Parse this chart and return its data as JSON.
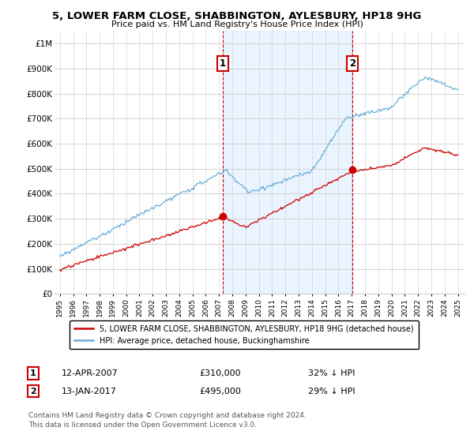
{
  "title": "5, LOWER FARM CLOSE, SHABBINGTON, AYLESBURY, HP18 9HG",
  "subtitle": "Price paid vs. HM Land Registry's House Price Index (HPI)",
  "legend_line1": "5, LOWER FARM CLOSE, SHABBINGTON, AYLESBURY, HP18 9HG (detached house)",
  "legend_line2": "HPI: Average price, detached house, Buckinghamshire",
  "ann1": {
    "label": "1",
    "date": "12-APR-2007",
    "price": "£310,000",
    "pct": "32% ↓ HPI",
    "x_year": 2007.28,
    "y_val": 310000
  },
  "ann2": {
    "label": "2",
    "date": "13-JAN-2017",
    "price": "£495,000",
    "pct": "29% ↓ HPI",
    "x_year": 2017.04,
    "y_val": 495000
  },
  "footnote1": "Contains HM Land Registry data © Crown copyright and database right 2024.",
  "footnote2": "This data is licensed under the Open Government Licence v3.0.",
  "hpi_color": "#6baed6",
  "price_color": "#cc0000",
  "ann_box_color": "#cc0000",
  "shade_color": "#ddeeff",
  "ylim": [
    0,
    1050000
  ],
  "yticks": [
    0,
    100000,
    200000,
    300000,
    400000,
    500000,
    600000,
    700000,
    800000,
    900000,
    1000000
  ],
  "ytick_labels": [
    "£0",
    "£100K",
    "£200K",
    "£300K",
    "£400K",
    "£500K",
    "£600K",
    "£700K",
    "£800K",
    "£900K",
    "£1M"
  ],
  "xlim_start": 1994.6,
  "xlim_end": 2025.5
}
